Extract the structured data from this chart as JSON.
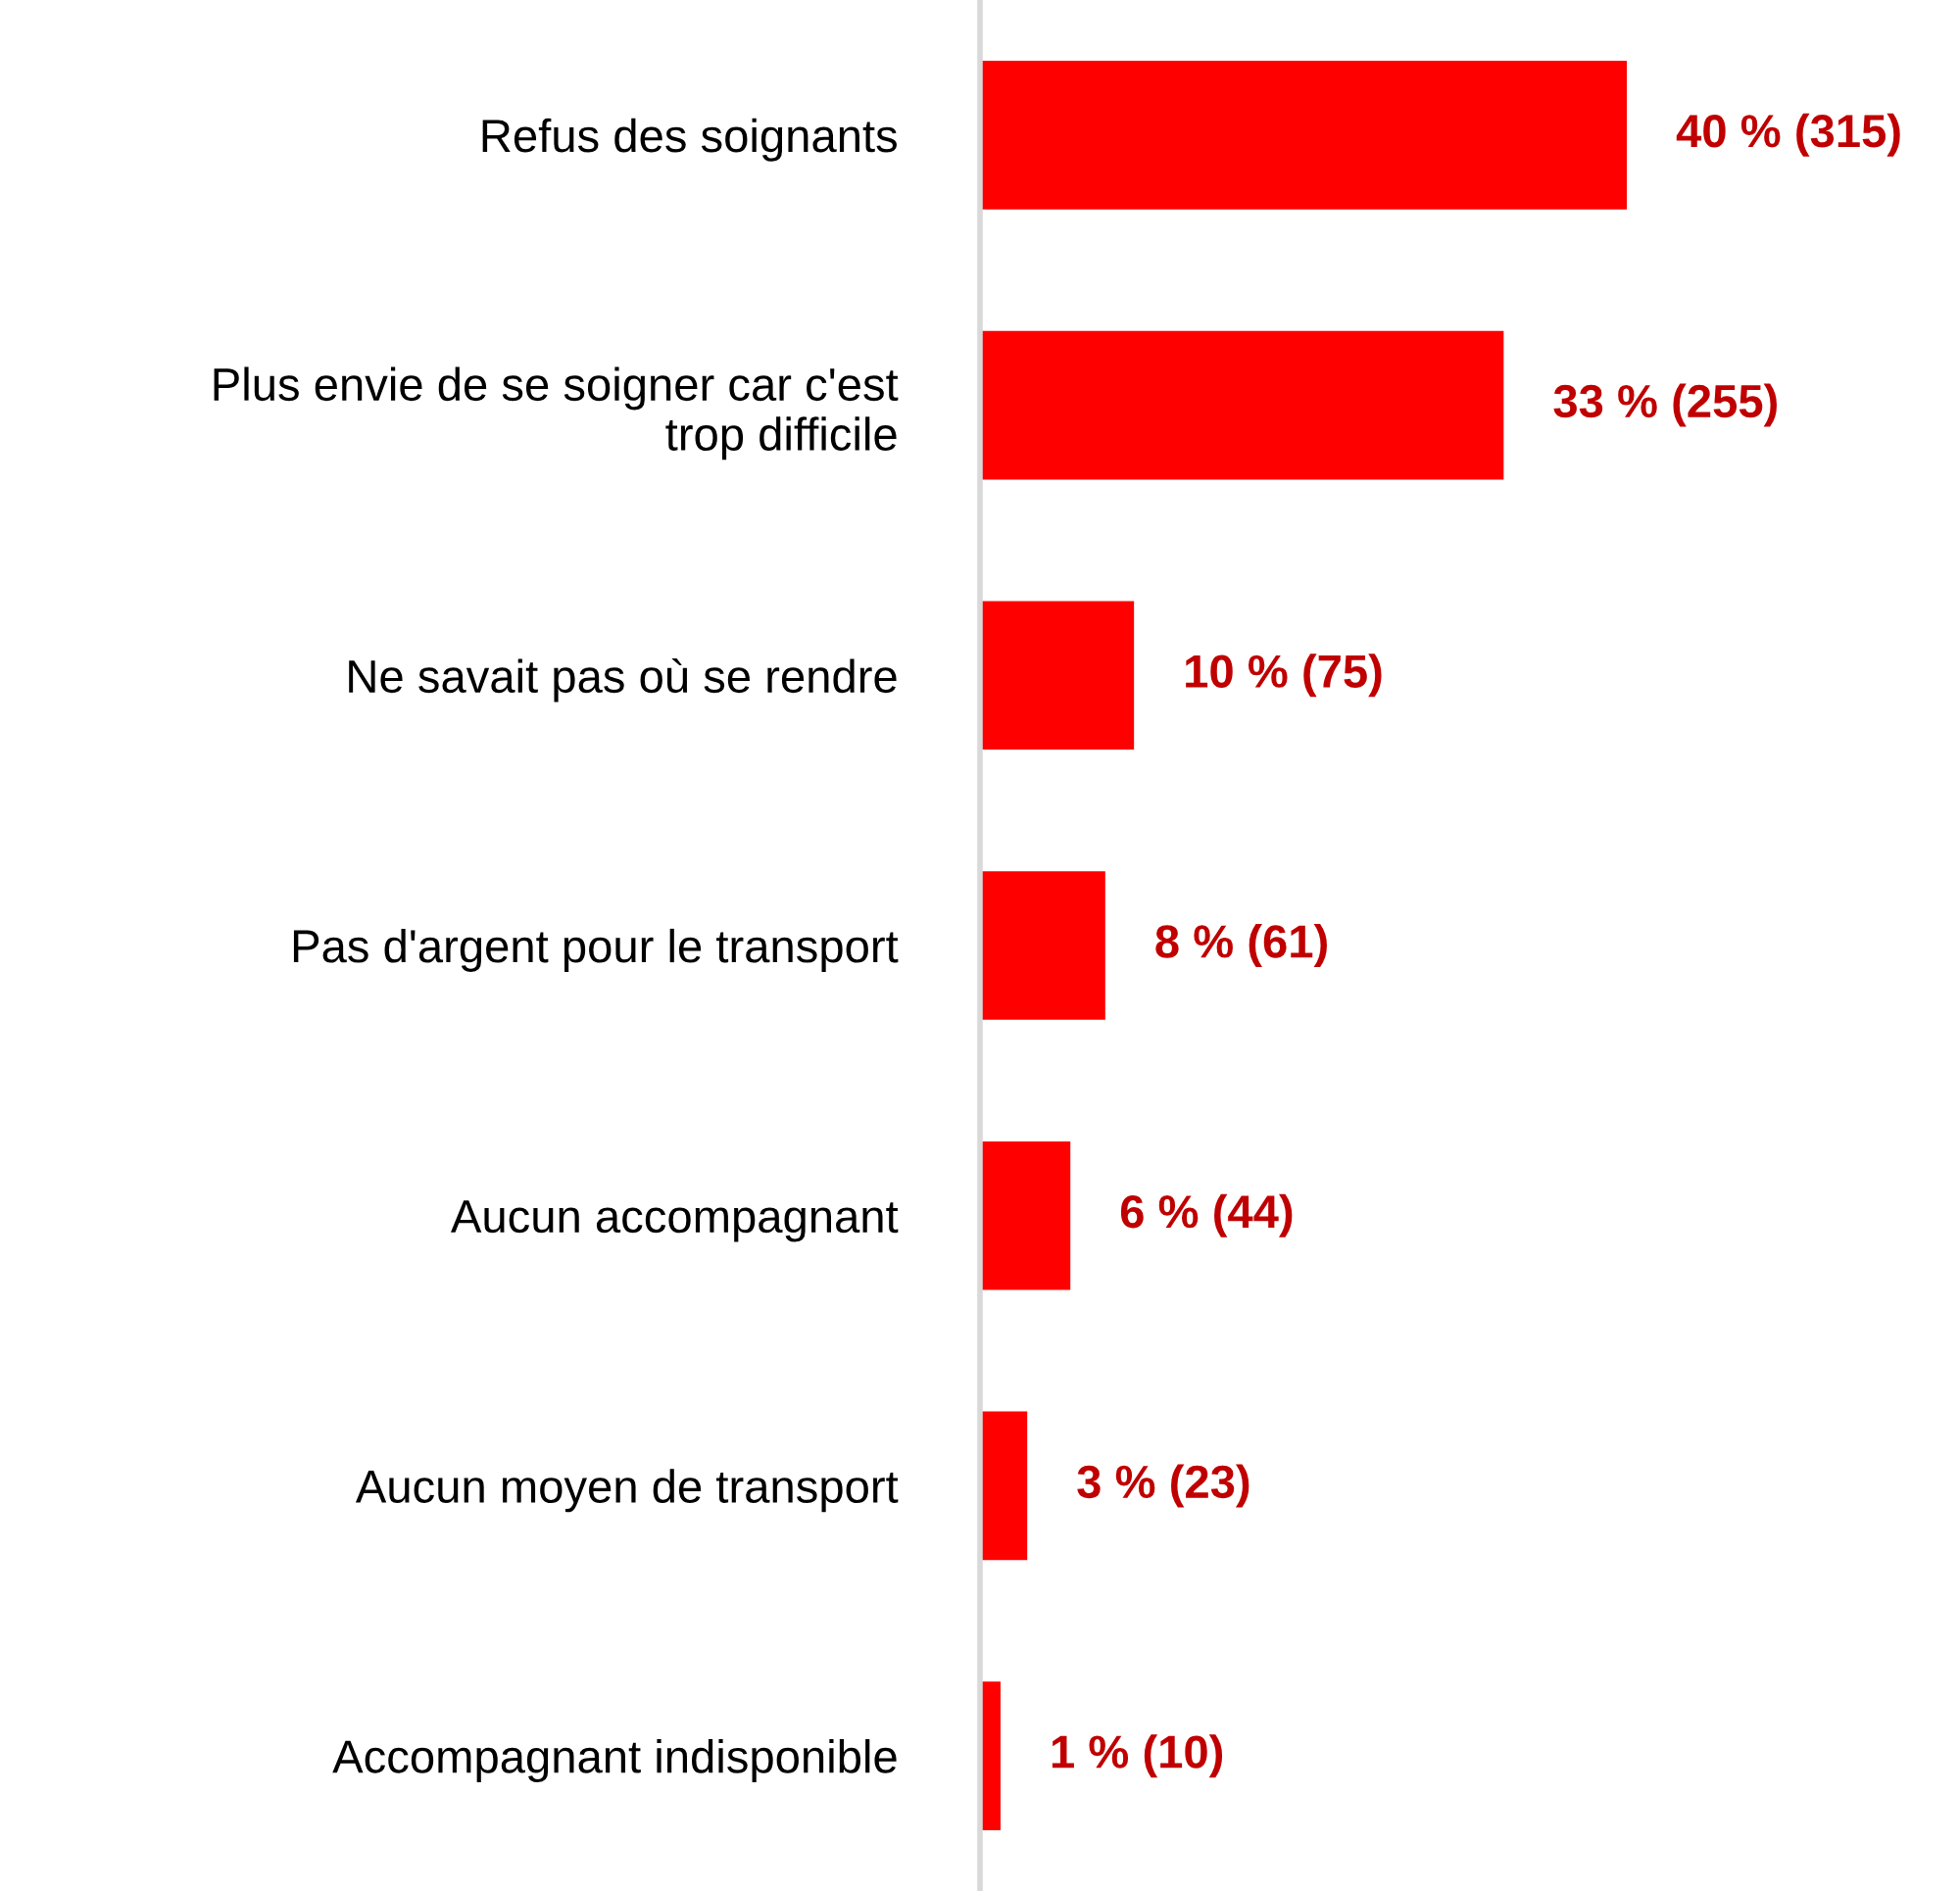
{
  "chart_data": {
    "type": "bar",
    "orientation": "horizontal",
    "categories": [
      "Refus des soignants",
      "Plus envie de se soigner car c'est\ntrop difficile",
      "Ne savait pas où se rendre",
      "Pas d'argent pour le transport",
      "Aucun accompagnant",
      "Aucun moyen de transport",
      "Accompagnant indisponible"
    ],
    "values": [
      315,
      255,
      75,
      61,
      44,
      23,
      10
    ],
    "value_labels": [
      "40 % (315)",
      "33 % (255)",
      "10 % (75)",
      "8 % (61)",
      "6 % (44)",
      "3 % (23)",
      "1 % (10)"
    ],
    "color": "#ff0000",
    "grid": false,
    "legend": false
  }
}
